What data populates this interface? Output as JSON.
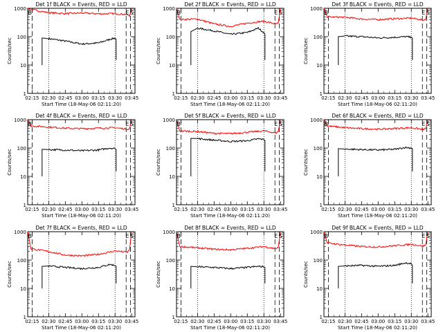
{
  "chart_data": [
    {
      "type": "line",
      "title": "Det 1f BLACK = Events, RED = LLD",
      "xlabel": "Start Time (18-May-06 02:11:20)",
      "ylabel": "Counts/sec",
      "yscale": "log",
      "ylim": [
        1,
        1000
      ],
      "xlim": [
        "02:11",
        "03:48"
      ],
      "x_ticks": [
        "02:15",
        "02:30",
        "02:45",
        "03:00",
        "03:15",
        "03:30",
        "03:45"
      ],
      "y_ticks": [
        "1",
        "10",
        "100",
        "1000"
      ],
      "markers": {
        "B": "02:13",
        "E": "03:41",
        "S": "03:45"
      },
      "dotted_times": [
        "02:30",
        "03:30"
      ],
      "dashed_times": [
        "02:15",
        "03:40",
        "03:44"
      ],
      "series": [
        {
          "color": "#000000",
          "x": [
            "02:24",
            "02:30",
            "02:45",
            "03:00",
            "03:15",
            "03:25",
            "03:30",
            "03:31"
          ],
          "y": [
            90,
            85,
            70,
            55,
            60,
            80,
            90,
            80
          ]
        },
        {
          "color": "#ff0000",
          "x": [
            "02:11",
            "02:14",
            "02:30",
            "02:45",
            "03:00",
            "03:15",
            "03:30",
            "03:41",
            "03:43",
            "03:45"
          ],
          "y": [
            1000,
            900,
            700,
            650,
            680,
            640,
            650,
            600,
            520,
            1000
          ]
        }
      ]
    },
    {
      "type": "line",
      "title": "Det 2f BLACK = Events, RED = LLD",
      "xlabel": "Start Time (18-May-06 02:11:20)",
      "ylabel": "Counts/sec",
      "yscale": "log",
      "ylim": [
        1,
        1000
      ],
      "xlim": [
        "02:11",
        "03:48"
      ],
      "x_ticks": [
        "02:15",
        "02:30",
        "02:45",
        "03:00",
        "03:15",
        "03:30",
        "03:45"
      ],
      "y_ticks": [
        "1",
        "10",
        "100",
        "1000"
      ],
      "markers": {
        "B": "02:13",
        "E": "03:41",
        "S": "03:45"
      },
      "dotted_times": [
        "02:30",
        "03:30"
      ],
      "dashed_times": [
        "02:15",
        "03:40",
        "03:44"
      ],
      "series": [
        {
          "color": "#000000",
          "x": [
            "02:24",
            "02:30",
            "02:45",
            "03:00",
            "03:15",
            "03:25",
            "03:30",
            "03:31"
          ],
          "y": [
            150,
            200,
            160,
            120,
            140,
            200,
            140,
            120
          ]
        },
        {
          "color": "#ff0000",
          "x": [
            "02:11",
            "02:14",
            "02:30",
            "02:45",
            "03:00",
            "03:15",
            "03:30",
            "03:41",
            "03:43",
            "03:45"
          ],
          "y": [
            1000,
            400,
            420,
            280,
            230,
            300,
            350,
            280,
            300,
            1000
          ]
        }
      ]
    },
    {
      "type": "line",
      "title": "Det 3f BLACK = Events, RED = LLD",
      "xlabel": "Start Time (18-May-06 02:11:20)",
      "ylabel": "Counts/sec",
      "yscale": "log",
      "ylim": [
        1,
        1000
      ],
      "xlim": [
        "02:11",
        "03:48"
      ],
      "x_ticks": [
        "02:15",
        "02:30",
        "02:45",
        "03:00",
        "03:15",
        "03:30",
        "03:45"
      ],
      "y_ticks": [
        "1",
        "10",
        "100",
        "1000"
      ],
      "markers": {
        "B": "02:13",
        "E": "03:41",
        "S": "03:45"
      },
      "dotted_times": [
        "02:30",
        "03:30"
      ],
      "dashed_times": [
        "02:15",
        "03:40",
        "03:44"
      ],
      "series": [
        {
          "color": "#000000",
          "x": [
            "02:24",
            "02:30",
            "02:45",
            "03:00",
            "03:15",
            "03:25",
            "03:30",
            "03:31"
          ],
          "y": [
            100,
            105,
            100,
            90,
            95,
            100,
            95,
            90
          ]
        },
        {
          "color": "#ff0000",
          "x": [
            "02:11",
            "02:14",
            "02:30",
            "02:45",
            "03:00",
            "03:15",
            "03:30",
            "03:41",
            "03:43",
            "03:45"
          ],
          "y": [
            1000,
            500,
            480,
            420,
            400,
            430,
            450,
            380,
            420,
            1000
          ]
        }
      ]
    },
    {
      "type": "line",
      "title": "Det 4f BLACK = Events, RED = LLD",
      "xlabel": "Start Time (18-May-06 02:11:20)",
      "ylabel": "Counts/sec",
      "yscale": "log",
      "ylim": [
        1,
        1000
      ],
      "xlim": [
        "02:11",
        "03:48"
      ],
      "x_ticks": [
        "02:15",
        "02:30",
        "02:45",
        "03:00",
        "03:15",
        "03:30",
        "03:45"
      ],
      "y_ticks": [
        "1",
        "10",
        "100",
        "1000"
      ],
      "markers": {
        "B": "02:13",
        "E": "03:41",
        "S": "03:45"
      },
      "dotted_times": [
        "02:30",
        "03:30"
      ],
      "dashed_times": [
        "02:15",
        "03:40",
        "03:44"
      ],
      "series": [
        {
          "color": "#000000",
          "x": [
            "02:24",
            "02:30",
            "02:45",
            "03:00",
            "03:15",
            "03:25",
            "03:30",
            "03:31"
          ],
          "y": [
            90,
            88,
            85,
            80,
            85,
            100,
            95,
            90
          ]
        },
        {
          "color": "#ff0000",
          "x": [
            "02:11",
            "02:14",
            "02:30",
            "02:45",
            "03:00",
            "03:15",
            "03:30",
            "03:41",
            "03:43",
            "03:45"
          ],
          "y": [
            1000,
            600,
            550,
            500,
            480,
            500,
            520,
            460,
            480,
            1000
          ]
        }
      ]
    },
    {
      "type": "line",
      "title": "Det 5f BLACK = Events, RED = LLD",
      "xlabel": "Start Time (18-May-06 02:11:20)",
      "ylabel": "Counts/sec",
      "yscale": "log",
      "ylim": [
        1,
        1000
      ],
      "xlim": [
        "02:11",
        "03:48"
      ],
      "x_ticks": [
        "02:15",
        "02:30",
        "02:45",
        "03:00",
        "03:15",
        "03:30",
        "03:45"
      ],
      "y_ticks": [
        "1",
        "10",
        "100",
        "1000"
      ],
      "markers": {
        "B": "02:13",
        "E": "03:41",
        "S": "03:45"
      },
      "dotted_times": [
        "02:30",
        "03:30"
      ],
      "dashed_times": [
        "02:15",
        "03:40",
        "03:44"
      ],
      "series": [
        {
          "color": "#000000",
          "x": [
            "02:24",
            "02:30",
            "02:45",
            "03:00",
            "03:15",
            "03:25",
            "03:30",
            "03:31"
          ],
          "y": [
            220,
            215,
            190,
            170,
            180,
            210,
            200,
            180
          ]
        },
        {
          "color": "#ff0000",
          "x": [
            "02:11",
            "02:14",
            "02:30",
            "02:45",
            "03:00",
            "03:15",
            "03:30",
            "03:41",
            "03:43",
            "03:45"
          ],
          "y": [
            1000,
            400,
            380,
            330,
            320,
            360,
            400,
            340,
            380,
            1000
          ]
        }
      ]
    },
    {
      "type": "line",
      "title": "Det 6f BLACK = Events, RED = LLD",
      "xlabel": "Start Time (18-May-06 02:11:20)",
      "ylabel": "Counts/sec",
      "yscale": "log",
      "ylim": [
        1,
        1000
      ],
      "xlim": [
        "02:11",
        "03:48"
      ],
      "x_ticks": [
        "02:15",
        "02:30",
        "02:45",
        "03:00",
        "03:15",
        "03:30",
        "03:45"
      ],
      "y_ticks": [
        "1",
        "10",
        "100",
        "1000"
      ],
      "markers": {
        "B": "02:13",
        "E": "03:41",
        "S": "03:45"
      },
      "dotted_times": [
        "02:30",
        "03:30"
      ],
      "dashed_times": [
        "02:15",
        "03:40",
        "03:44"
      ],
      "series": [
        {
          "color": "#000000",
          "x": [
            "02:24",
            "02:30",
            "02:45",
            "03:00",
            "03:15",
            "03:25",
            "03:30",
            "03:31"
          ],
          "y": [
            95,
            92,
            88,
            85,
            90,
            105,
            100,
            95
          ]
        },
        {
          "color": "#ff0000",
          "x": [
            "02:11",
            "02:14",
            "02:30",
            "02:45",
            "03:00",
            "03:15",
            "03:30",
            "03:41",
            "03:43",
            "03:45"
          ],
          "y": [
            1000,
            600,
            520,
            480,
            460,
            490,
            520,
            450,
            480,
            1000
          ]
        }
      ]
    },
    {
      "type": "line",
      "title": "Det 7f BLACK = Events, RED = LLD",
      "xlabel": "Start Time (18-May-06 02:11:20)",
      "ylabel": "Counts/sec",
      "yscale": "log",
      "ylim": [
        1,
        1000
      ],
      "xlim": [
        "02:11",
        "03:48"
      ],
      "x_ticks": [
        "02:15",
        "02:30",
        "02:45",
        "03:00",
        "03:15",
        "03:30",
        "03:45"
      ],
      "y_ticks": [
        "1",
        "10",
        "100",
        "1000"
      ],
      "markers": {
        "B": "02:13",
        "E": "03:41",
        "S": "03:45"
      },
      "dotted_times": [
        "02:30",
        "03:30"
      ],
      "dashed_times": [
        "02:15",
        "03:40",
        "03:44"
      ],
      "series": [
        {
          "color": "#000000",
          "x": [
            "02:24",
            "02:30",
            "02:45",
            "03:00",
            "03:15",
            "03:25",
            "03:30",
            "03:31"
          ],
          "y": [
            60,
            62,
            55,
            50,
            55,
            70,
            65,
            60
          ]
        },
        {
          "color": "#ff0000",
          "x": [
            "02:11",
            "02:14",
            "02:30",
            "02:45",
            "03:00",
            "03:15",
            "03:30",
            "03:41",
            "03:43",
            "03:45"
          ],
          "y": [
            1000,
            250,
            200,
            150,
            140,
            160,
            210,
            190,
            220,
            1000
          ]
        }
      ]
    },
    {
      "type": "line",
      "title": "Det 8f BLACK = Events, RED = LLD",
      "xlabel": "Start Time (18-May-06 02:11:20)",
      "ylabel": "Counts/sec",
      "yscale": "log",
      "ylim": [
        1,
        1000
      ],
      "xlim": [
        "02:11",
        "03:48"
      ],
      "x_ticks": [
        "02:15",
        "02:30",
        "02:45",
        "03:00",
        "03:15",
        "03:30",
        "03:45"
      ],
      "y_ticks": [
        "1",
        "10",
        "100",
        "1000"
      ],
      "markers": {
        "B": "02:13",
        "E": "03:41",
        "S": "03:45"
      },
      "dotted_times": [
        "02:30",
        "03:30"
      ],
      "dashed_times": [
        "02:15",
        "03:40",
        "03:44"
      ],
      "series": [
        {
          "color": "#000000",
          "x": [
            "02:24",
            "02:30",
            "02:45",
            "03:00",
            "03:15",
            "03:25",
            "03:30",
            "03:31"
          ],
          "y": [
            60,
            58,
            55,
            50,
            55,
            60,
            58,
            55
          ]
        },
        {
          "color": "#ff0000",
          "x": [
            "02:11",
            "02:14",
            "02:30",
            "02:45",
            "03:00",
            "03:15",
            "03:30",
            "03:41",
            "03:43",
            "03:45"
          ],
          "y": [
            1000,
            300,
            270,
            240,
            230,
            260,
            300,
            250,
            280,
            1000
          ]
        }
      ]
    },
    {
      "type": "line",
      "title": "Det 9f BLACK = Events, RED = LLD",
      "xlabel": "Start Time (18-May-06 02:11:20)",
      "ylabel": "Counts/sec",
      "yscale": "log",
      "ylim": [
        1,
        1000
      ],
      "xlim": [
        "02:11",
        "03:48"
      ],
      "x_ticks": [
        "02:15",
        "02:30",
        "02:45",
        "03:00",
        "03:15",
        "03:30",
        "03:45"
      ],
      "y_ticks": [
        "1",
        "10",
        "100",
        "1000"
      ],
      "markers": {
        "B": "02:13",
        "E": "03:41",
        "S": "03:45"
      },
      "dotted_times": [
        "02:30",
        "03:30"
      ],
      "dashed_times": [
        "02:15",
        "03:40",
        "03:44"
      ],
      "series": [
        {
          "color": "#000000",
          "x": [
            "02:24",
            "02:30",
            "02:45",
            "03:00",
            "03:15",
            "03:25",
            "03:30",
            "03:31"
          ],
          "y": [
            60,
            62,
            65,
            60,
            65,
            80,
            75,
            65
          ]
        },
        {
          "color": "#ff0000",
          "x": [
            "02:11",
            "02:14",
            "02:30",
            "02:45",
            "03:00",
            "03:15",
            "03:30",
            "03:41",
            "03:43",
            "03:45"
          ],
          "y": [
            1000,
            400,
            340,
            300,
            290,
            320,
            360,
            310,
            350,
            1000
          ]
        }
      ]
    }
  ]
}
